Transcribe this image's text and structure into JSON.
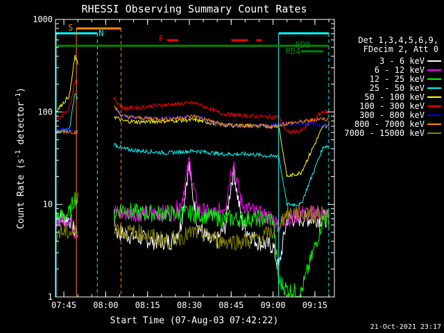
{
  "chart_data": {
    "type": "line",
    "title": "RHESSI Observing Summary Count Rates",
    "xlabel": "Start Time (07-Aug-03 07:42:22)",
    "ylabel": "Count Rate (s⁻¹ detector⁻¹)",
    "ylabel_main": "Count Rate (s",
    "ylabel_sup1": "-1",
    "ylabel_mid": " detector",
    "ylabel_sup2": "-1",
    "ylabel_end": ")",
    "x_range_minutes": [
      0,
      100
    ],
    "x_ticks": [
      {
        "label": "07:45",
        "minute": 3
      },
      {
        "label": "08:00",
        "minute": 18
      },
      {
        "label": "08:15",
        "minute": 33
      },
      {
        "label": "08:30",
        "minute": 48
      },
      {
        "label": "08:45",
        "minute": 63
      },
      {
        "label": "09:00",
        "minute": 78
      },
      {
        "label": "09:15",
        "minute": 93
      }
    ],
    "y_scale": "log",
    "ylim": [
      1,
      1000
    ],
    "y_ticks": [
      {
        "label": "1",
        "value": 1
      },
      {
        "label": "10",
        "value": 10
      },
      {
        "label": "100",
        "value": 100
      },
      {
        "label": "1000",
        "value": 1000
      }
    ],
    "legend": {
      "header": [
        "Det 1,3,4,5,6,9,",
        "FDecim 2, Att 0"
      ],
      "placement": "right"
    },
    "series": [
      {
        "name": "3 - 6 keV",
        "color": "#ffffff",
        "points": [
          [
            0,
            7
          ],
          [
            5,
            7
          ],
          [
            7,
            5
          ],
          [
            13,
            6
          ],
          [
            21,
            7
          ],
          [
            22,
            5
          ],
          [
            35,
            4
          ],
          [
            42,
            4
          ],
          [
            45,
            6
          ],
          [
            47,
            18
          ],
          [
            48,
            26
          ],
          [
            49,
            14
          ],
          [
            51,
            6
          ],
          [
            55,
            4
          ],
          [
            58,
            4
          ],
          [
            61,
            6
          ],
          [
            63,
            17
          ],
          [
            64,
            23
          ],
          [
            65,
            14
          ],
          [
            67,
            6
          ],
          [
            72,
            4
          ],
          [
            78,
            3.5
          ],
          [
            80,
            2
          ],
          [
            83,
            7
          ],
          [
            88,
            7
          ],
          [
            96,
            7
          ],
          [
            98,
            7
          ]
        ]
      },
      {
        "name": "6 - 12 keV",
        "color": "#ff00ff",
        "points": [
          [
            0,
            7
          ],
          [
            5,
            7
          ],
          [
            7,
            5
          ],
          [
            13,
            6
          ],
          [
            21,
            9
          ],
          [
            22,
            8
          ],
          [
            35,
            8
          ],
          [
            42,
            8
          ],
          [
            45,
            10
          ],
          [
            47,
            20
          ],
          [
            48,
            30
          ],
          [
            49,
            18
          ],
          [
            51,
            9
          ],
          [
            55,
            8
          ],
          [
            58,
            8
          ],
          [
            61,
            10
          ],
          [
            63,
            24
          ],
          [
            64,
            28
          ],
          [
            65,
            18
          ],
          [
            67,
            10
          ],
          [
            72,
            8
          ],
          [
            78,
            7
          ],
          [
            80,
            6
          ],
          [
            83,
            7
          ],
          [
            88,
            8
          ],
          [
            96,
            8
          ],
          [
            98,
            7
          ]
        ]
      },
      {
        "name": "12 - 25 keV",
        "color": "#00ff00",
        "points": [
          [
            0,
            7
          ],
          [
            5,
            8
          ],
          [
            7,
            12
          ],
          [
            13,
            7
          ],
          [
            21,
            8
          ],
          [
            24,
            9
          ],
          [
            30,
            8
          ],
          [
            40,
            8
          ],
          [
            50,
            8
          ],
          [
            60,
            7
          ],
          [
            70,
            7
          ],
          [
            78,
            7
          ],
          [
            80,
            1.5
          ],
          [
            83,
            1.2
          ],
          [
            88,
            1.1
          ],
          [
            96,
            7
          ],
          [
            98,
            7
          ]
        ]
      },
      {
        "name": "25 - 50 keV",
        "color": "#00ffff",
        "points": [
          [
            0,
            60
          ],
          [
            5,
            65
          ],
          [
            7,
            160
          ],
          [
            13,
            70
          ],
          [
            21,
            45
          ],
          [
            24,
            40
          ],
          [
            30,
            38
          ],
          [
            40,
            36
          ],
          [
            50,
            38
          ],
          [
            60,
            35
          ],
          [
            70,
            35
          ],
          [
            78,
            33
          ],
          [
            80,
            34
          ],
          [
            83,
            10
          ],
          [
            88,
            10
          ],
          [
            96,
            42
          ],
          [
            98,
            43
          ]
        ]
      },
      {
        "name": "50 - 100 keV",
        "color": "#ffff00",
        "points": [
          [
            0,
            100
          ],
          [
            5,
            150
          ],
          [
            7,
            400
          ],
          [
            13,
            120
          ],
          [
            21,
            90
          ],
          [
            24,
            80
          ],
          [
            30,
            78
          ],
          [
            40,
            80
          ],
          [
            50,
            82
          ],
          [
            60,
            72
          ],
          [
            70,
            71
          ],
          [
            78,
            70
          ],
          [
            80,
            72
          ],
          [
            83,
            20
          ],
          [
            88,
            22
          ],
          [
            96,
            70
          ],
          [
            98,
            72
          ]
        ]
      },
      {
        "name": "100 - 300 keV",
        "color": "#ff0000",
        "points": [
          [
            0,
            80
          ],
          [
            5,
            110
          ],
          [
            7,
            220
          ],
          [
            13,
            150
          ],
          [
            21,
            140
          ],
          [
            24,
            110
          ],
          [
            30,
            112
          ],
          [
            40,
            120
          ],
          [
            50,
            125
          ],
          [
            60,
            95
          ],
          [
            70,
            90
          ],
          [
            78,
            88
          ],
          [
            80,
            90
          ],
          [
            83,
            60
          ],
          [
            88,
            62
          ],
          [
            96,
            102
          ],
          [
            98,
            98
          ]
        ]
      },
      {
        "name": "300 - 800 keV",
        "color": "#0000ff",
        "points": [
          [
            0,
            65
          ],
          [
            5,
            65
          ],
          [
            7,
            60
          ],
          [
            13,
            60
          ],
          [
            21,
            110
          ],
          [
            24,
            90
          ],
          [
            30,
            85
          ],
          [
            40,
            85
          ],
          [
            50,
            90
          ],
          [
            60,
            72
          ],
          [
            70,
            70
          ],
          [
            78,
            72
          ],
          [
            80,
            73
          ],
          [
            83,
            75
          ],
          [
            88,
            76
          ],
          [
            96,
            72
          ],
          [
            98,
            70
          ]
        ]
      },
      {
        "name": "800 - 7000 keV",
        "color": "#ff8800",
        "points": [
          [
            0,
            60
          ],
          [
            5,
            62
          ],
          [
            7,
            60
          ],
          [
            13,
            60
          ],
          [
            21,
            115
          ],
          [
            24,
            90
          ],
          [
            30,
            86
          ],
          [
            40,
            84
          ],
          [
            50,
            90
          ],
          [
            60,
            73
          ],
          [
            70,
            70
          ],
          [
            78,
            70
          ],
          [
            80,
            72
          ],
          [
            83,
            75
          ],
          [
            88,
            78
          ],
          [
            96,
            85
          ],
          [
            98,
            82
          ]
        ]
      },
      {
        "name": "7000 - 15000 keV",
        "color": "#888800",
        "points": [
          [
            0,
            5
          ],
          [
            5,
            5
          ],
          [
            7,
            5
          ],
          [
            13,
            5
          ],
          [
            21,
            6
          ],
          [
            24,
            5
          ],
          [
            30,
            5
          ],
          [
            40,
            4
          ],
          [
            50,
            5
          ],
          [
            60,
            4
          ],
          [
            70,
            4
          ],
          [
            78,
            5
          ],
          [
            80,
            6
          ],
          [
            83,
            8
          ],
          [
            88,
            8
          ],
          [
            96,
            8
          ],
          [
            98,
            8
          ]
        ]
      }
    ],
    "annotations": {
      "saa": {
        "label": "S",
        "color": "#ff8800",
        "x_start": 7.5,
        "x_end": 23.5
      },
      "night": {
        "label": "N",
        "color": "#00ffff",
        "x_start": 0,
        "x_end": 15
      },
      "night2": {
        "color": "#00ffff",
        "x_start": 80,
        "x_end": 98
      },
      "flare": {
        "label": "F",
        "color": "#ff0000",
        "segments": [
          [
            40,
            44
          ],
          [
            63,
            69
          ],
          [
            72,
            74
          ]
        ]
      },
      "rd0": {
        "label": "RD0",
        "color": "#008800",
        "x_start": 0,
        "x_end": 98
      },
      "rd4": {
        "label": "RD4",
        "color": "#008800",
        "x_start": 88,
        "x_end": 96
      }
    }
  },
  "footer": {
    "timestamp": "21-Oct-2021 23:17"
  }
}
